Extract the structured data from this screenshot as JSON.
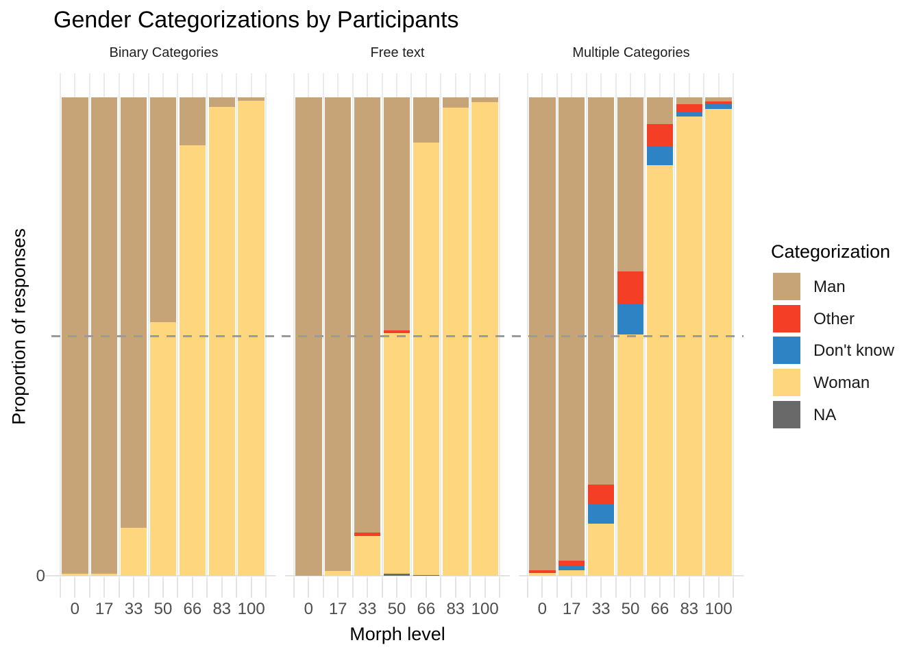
{
  "title": "Gender Categorizations by Participants",
  "x_axis": {
    "title": "Morph level",
    "tick_labels": [
      "0",
      "17",
      "33",
      "50",
      "66",
      "83",
      "100"
    ]
  },
  "y_axis": {
    "title": "Proportion of responses",
    "tick_labels": [
      "0"
    ]
  },
  "legend": {
    "title": "Categorization",
    "entries": [
      {
        "label": "Man",
        "color": "#C7A477"
      },
      {
        "label": "Other",
        "color": "#F43E25"
      },
      {
        "label": "Don't know",
        "color": "#2E83C5"
      },
      {
        "label": "Woman",
        "color": "#FDD67E"
      },
      {
        "label": "NA",
        "color": "#696969"
      }
    ]
  },
  "reference_line": {
    "y": 0.5,
    "style": "dashed",
    "color": "#9B9B9B"
  },
  "style_colors": {
    "gridline": "#EBEBEB",
    "axis_tick": "#E3E3E3",
    "tick_text": "#4d4d4d"
  },
  "chart_data": {
    "type": "bar",
    "subtype": "stacked-proportion",
    "title": "Gender Categorizations by Participants",
    "xlabel": "Morph level",
    "ylabel": "Proportion of responses",
    "ylim": [
      0,
      1
    ],
    "grid": "vertical-only",
    "legend_position": "right",
    "stack_order": [
      "Man",
      "Other",
      "Don't know",
      "Woman",
      "NA"
    ],
    "categories": [
      0,
      17,
      33,
      50,
      66,
      83,
      100
    ],
    "facets": [
      {
        "label": "Binary Categories",
        "series": [
          {
            "name": "Man",
            "values": [
              0.995,
              0.995,
              0.9,
              0.47,
              0.1,
              0.02,
              0.007
            ]
          },
          {
            "name": "Other",
            "values": [
              0,
              0,
              0,
              0,
              0,
              0,
              0
            ]
          },
          {
            "name": "Don't know",
            "values": [
              0,
              0,
              0,
              0,
              0,
              0,
              0
            ]
          },
          {
            "name": "Woman",
            "values": [
              0.005,
              0.005,
              0.1,
              0.53,
              0.9,
              0.98,
              0.993
            ]
          },
          {
            "name": "NA",
            "values": [
              0,
              0,
              0,
              0,
              0,
              0,
              0
            ]
          }
        ]
      },
      {
        "label": "Free text",
        "series": [
          {
            "name": "Man",
            "values": [
              1.0,
              0.99,
              0.91,
              0.487,
              0.095,
              0.022,
              0.01
            ]
          },
          {
            "name": "Other",
            "values": [
              0,
              0,
              0.007,
              0.006,
              0,
              0,
              0
            ]
          },
          {
            "name": "Don't know",
            "values": [
              0,
              0,
              0,
              0,
              0,
              0,
              0
            ]
          },
          {
            "name": "Woman",
            "values": [
              0,
              0.01,
              0.083,
              0.503,
              0.903,
              0.978,
              0.99
            ]
          },
          {
            "name": "NA",
            "values": [
              0,
              0,
              0,
              0.004,
              0.002,
              0,
              0
            ]
          }
        ]
      },
      {
        "label": "Multiple Categories",
        "series": [
          {
            "name": "Man",
            "values": [
              0.988,
              0.969,
              0.81,
              0.364,
              0.056,
              0.014,
              0.008
            ]
          },
          {
            "name": "Other",
            "values": [
              0.006,
              0.009,
              0.039,
              0.068,
              0.046,
              0.017,
              0.005
            ]
          },
          {
            "name": "Don't know",
            "values": [
              0,
              0.01,
              0.042,
              0.064,
              0.04,
              0.009,
              0.011
            ]
          },
          {
            "name": "Woman",
            "values": [
              0.006,
              0.012,
              0.109,
              0.504,
              0.858,
              0.96,
              0.976
            ]
          },
          {
            "name": "NA",
            "values": [
              0,
              0,
              0,
              0,
              0,
              0,
              0
            ]
          }
        ]
      }
    ]
  }
}
